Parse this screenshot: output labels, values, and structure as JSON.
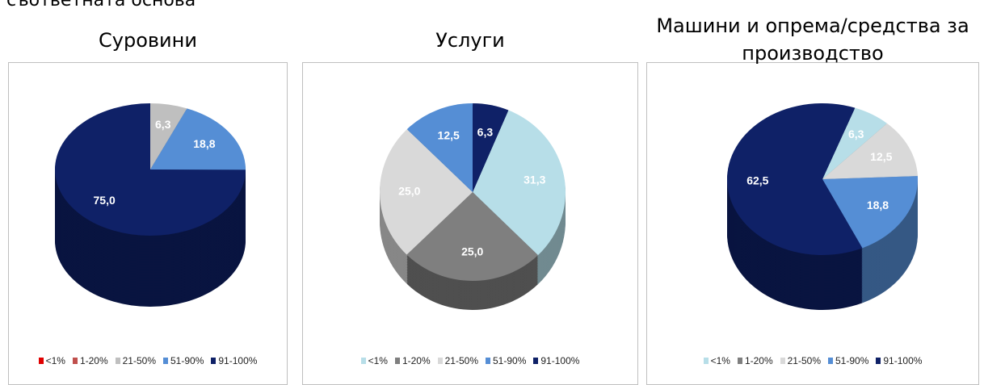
{
  "caption": "съответната основа",
  "chart_data": [
    {
      "type": "pie",
      "title": "Суровини",
      "categories": [
        "<1%",
        "1-20%",
        "21-50%",
        "51-90%",
        "91-100%"
      ],
      "values": [
        0,
        0,
        6.3,
        18.8,
        75.0
      ],
      "value_labels": [
        null,
        null,
        "6,3",
        "18,8",
        "75,0"
      ],
      "colors": [
        "#e00000",
        "#c0504d",
        "#bfbfbf",
        "#558ed5",
        "#0f2167"
      ]
    },
    {
      "type": "pie",
      "title": "Услуги",
      "categories": [
        "<1%",
        "1-20%",
        "21-50%",
        "51-90%",
        "91-100%"
      ],
      "values": [
        31.3,
        25.0,
        25.0,
        12.5,
        6.3
      ],
      "value_labels": [
        "31,3",
        "25,0",
        "25,0",
        "12,5",
        "6,3"
      ],
      "colors": [
        "#b7dee8",
        "#7f7f7f",
        "#d9d9d9",
        "#558ed5",
        "#0f2167"
      ]
    },
    {
      "type": "pie",
      "title": "Машини и опрема/средства за производство",
      "categories": [
        "<1%",
        "1-20%",
        "21-50%",
        "51-90%",
        "91-100%"
      ],
      "values": [
        6.3,
        0,
        12.5,
        18.8,
        62.5
      ],
      "value_labels": [
        "6,3",
        null,
        "12,5",
        "18,8",
        "62,5"
      ],
      "colors": [
        "#b7dee8",
        "#7f7f7f",
        "#d9d9d9",
        "#558ed5",
        "#0f2167"
      ]
    }
  ]
}
